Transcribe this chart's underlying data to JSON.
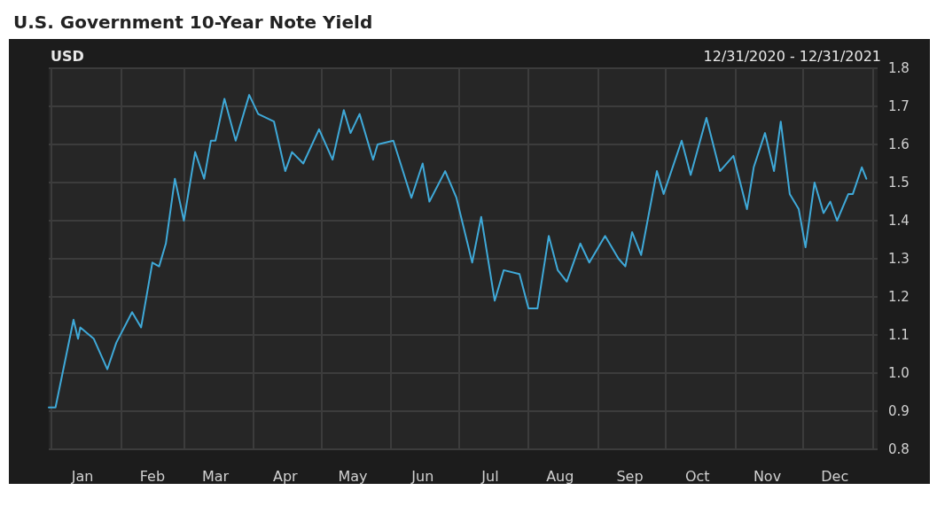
{
  "chart_data": {
    "type": "line",
    "title": "U.S. Government 10-Year Note Yield",
    "subtitle": "12/31/2020 - 12/31/2021",
    "ylabel": "USD",
    "x": [
      "2020-12-31",
      "2021-01-03",
      "2021-01-11",
      "2021-01-13",
      "2021-01-14",
      "2021-01-20",
      "2021-01-26",
      "2021-01-30",
      "2021-02-06",
      "2021-02-10",
      "2021-02-15",
      "2021-02-18",
      "2021-02-21",
      "2021-02-25",
      "2021-03-01",
      "2021-03-06",
      "2021-03-10",
      "2021-03-13",
      "2021-03-15",
      "2021-03-19",
      "2021-03-24",
      "2021-03-30",
      "2021-04-03",
      "2021-04-10",
      "2021-04-15",
      "2021-04-18",
      "2021-04-23",
      "2021-04-30",
      "2021-05-06",
      "2021-05-11",
      "2021-05-14",
      "2021-05-18",
      "2021-05-24",
      "2021-05-26",
      "2021-06-02",
      "2021-06-10",
      "2021-06-15",
      "2021-06-18",
      "2021-06-25",
      "2021-06-30",
      "2021-07-07",
      "2021-07-11",
      "2021-07-17",
      "2021-07-21",
      "2021-07-28",
      "2021-08-01",
      "2021-08-05",
      "2021-08-10",
      "2021-08-14",
      "2021-08-18",
      "2021-08-24",
      "2021-08-28",
      "2021-09-04",
      "2021-09-10",
      "2021-09-13",
      "2021-09-16",
      "2021-09-20",
      "2021-09-27",
      "2021-09-30",
      "2021-10-08",
      "2021-10-12",
      "2021-10-19",
      "2021-10-25",
      "2021-10-31",
      "2021-11-06",
      "2021-11-09",
      "2021-11-14",
      "2021-11-18",
      "2021-11-21",
      "2021-11-25",
      "2021-11-29",
      "2021-12-02",
      "2021-12-06",
      "2021-12-10",
      "2021-12-13",
      "2021-12-16",
      "2021-12-21",
      "2021-12-23",
      "2021-12-27",
      "2021-12-29"
    ],
    "series": [
      {
        "color": "#3fa9d8",
        "values": [
          0.91,
          0.91,
          1.14,
          1.09,
          1.12,
          1.09,
          1.01,
          1.08,
          1.16,
          1.12,
          1.29,
          1.28,
          1.34,
          1.51,
          1.4,
          1.58,
          1.51,
          1.61,
          1.61,
          1.72,
          1.61,
          1.73,
          1.68,
          1.66,
          1.53,
          1.58,
          1.55,
          1.64,
          1.56,
          1.69,
          1.63,
          1.68,
          1.56,
          1.6,
          1.61,
          1.46,
          1.55,
          1.45,
          1.53,
          1.46,
          1.29,
          1.41,
          1.19,
          1.27,
          1.26,
          1.17,
          1.17,
          1.36,
          1.27,
          1.24,
          1.34,
          1.29,
          1.36,
          1.3,
          1.28,
          1.37,
          1.31,
          1.53,
          1.47,
          1.61,
          1.52,
          1.67,
          1.53,
          1.57,
          1.43,
          1.54,
          1.63,
          1.53,
          1.66,
          1.47,
          1.43,
          1.33,
          1.5,
          1.42,
          1.45,
          1.4,
          1.47,
          1.47,
          1.54,
          1.51
        ]
      }
    ],
    "xlim": [
      "2020-12-31",
      "2022-01-03"
    ],
    "xticks": [
      {
        "value": "2021-01-01",
        "label": null
      },
      {
        "value": "2021-02-01",
        "label": null
      },
      {
        "value": "2021-03-01",
        "label": null
      },
      {
        "value": "2021-04-01",
        "label": null
      },
      {
        "value": "2021-05-01",
        "label": null
      },
      {
        "value": "2021-06-01",
        "label": null
      },
      {
        "value": "2021-07-01",
        "label": null
      },
      {
        "value": "2021-08-01",
        "label": null
      },
      {
        "value": "2021-09-01",
        "label": null
      },
      {
        "value": "2021-10-01",
        "label": null
      },
      {
        "value": "2021-11-01",
        "label": null
      },
      {
        "value": "2021-12-01",
        "label": null
      },
      {
        "value": "2022-01-01",
        "label": null
      },
      {
        "value": "2021-01-15",
        "label": "Jan"
      },
      {
        "value": "2021-02-15",
        "label": "Feb"
      },
      {
        "value": "2021-03-15",
        "label": "Mar"
      },
      {
        "value": "2021-04-15",
        "label": "Apr"
      },
      {
        "value": "2021-05-15",
        "label": "May"
      },
      {
        "value": "2021-06-15",
        "label": "Jun"
      },
      {
        "value": "2021-07-15",
        "label": "Jul"
      },
      {
        "value": "2021-08-15",
        "label": "Aug"
      },
      {
        "value": "2021-09-15",
        "label": "Sep"
      },
      {
        "value": "2021-10-15",
        "label": "Oct"
      },
      {
        "value": "2021-11-15",
        "label": "Nov"
      },
      {
        "value": "2021-12-15",
        "label": "Dec"
      }
    ],
    "ylim": [
      0.8,
      1.8
    ],
    "yticks": [
      0.8,
      0.9,
      {
        "value": 1,
        "label": "1.0"
      },
      1.1,
      1.2,
      1.3,
      1.4,
      1.5,
      1.6,
      1.7,
      1.8
    ],
    "grid": true,
    "marker": "none",
    "line_style": "solid"
  }
}
